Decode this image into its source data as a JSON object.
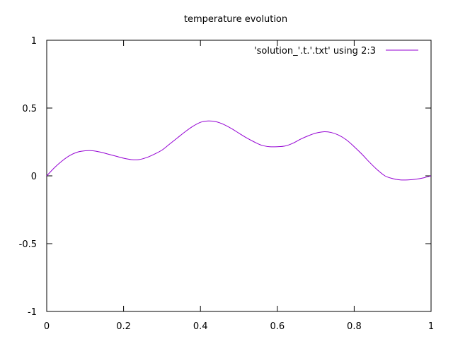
{
  "chart_data": {
    "type": "line",
    "title": "temperature evolution",
    "xlabel": "",
    "ylabel": "",
    "xlim": [
      0,
      1
    ],
    "ylim": [
      -1,
      1
    ],
    "xticks": [
      0,
      0.2,
      0.4,
      0.6,
      0.8,
      1
    ],
    "xtick_labels": [
      "0",
      "0.2",
      "0.4",
      "0.6",
      "0.8",
      "1"
    ],
    "yticks": [
      -1,
      -0.5,
      0,
      0.5,
      1
    ],
    "ytick_labels": [
      "-1",
      "-0.5",
      "0",
      "0.5",
      "1"
    ],
    "grid": false,
    "legend_position": "top-right",
    "series": [
      {
        "name": "'solution_'.t.'.txt' using 2:3",
        "color": "#9400d3",
        "x": [
          0,
          0.02,
          0.04,
          0.06,
          0.08,
          0.1,
          0.12,
          0.14,
          0.16,
          0.18,
          0.2,
          0.22,
          0.24,
          0.26,
          0.28,
          0.3,
          0.32,
          0.34,
          0.36,
          0.38,
          0.4,
          0.42,
          0.44,
          0.46,
          0.48,
          0.5,
          0.52,
          0.54,
          0.56,
          0.58,
          0.6,
          0.62,
          0.64,
          0.66,
          0.68,
          0.7,
          0.72,
          0.74,
          0.76,
          0.78,
          0.8,
          0.82,
          0.84,
          0.86,
          0.88,
          0.9,
          0.92,
          0.94,
          0.96,
          0.98,
          1.0
        ],
        "y": [
          0,
          0.06,
          0.11,
          0.15,
          0.175,
          0.185,
          0.185,
          0.175,
          0.16,
          0.145,
          0.13,
          0.12,
          0.12,
          0.135,
          0.16,
          0.19,
          0.235,
          0.28,
          0.325,
          0.365,
          0.395,
          0.405,
          0.4,
          0.38,
          0.35,
          0.315,
          0.28,
          0.25,
          0.225,
          0.215,
          0.215,
          0.22,
          0.24,
          0.27,
          0.295,
          0.315,
          0.325,
          0.32,
          0.3,
          0.265,
          0.215,
          0.16,
          0.1,
          0.045,
          0.0,
          -0.02,
          -0.03,
          -0.03,
          -0.025,
          -0.015,
          0.0
        ]
      }
    ]
  }
}
